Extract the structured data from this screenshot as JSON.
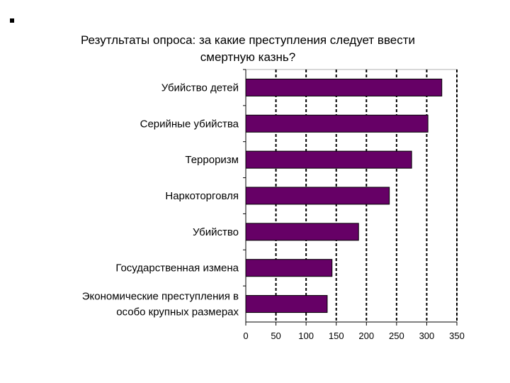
{
  "chart_data": {
    "type": "bar",
    "orientation": "horizontal",
    "title": "Резутльтаты опроса: за какие преступления следует ввести смертную казнь?",
    "categories": [
      "Убийство детей",
      "Серийные убийства",
      "Терроризм",
      "Наркоторговля",
      "Убийство",
      "Государственная измена",
      "Экономические преступления в особо крупных размерах"
    ],
    "values": [
      325,
      302,
      275,
      238,
      187,
      143,
      135
    ],
    "xlim": [
      0,
      350
    ],
    "xticks": [
      "0",
      "50",
      "100",
      "150",
      "200",
      "250",
      "300",
      "350"
    ],
    "grid": "dashed-vertical",
    "bar_color": "#660066"
  }
}
